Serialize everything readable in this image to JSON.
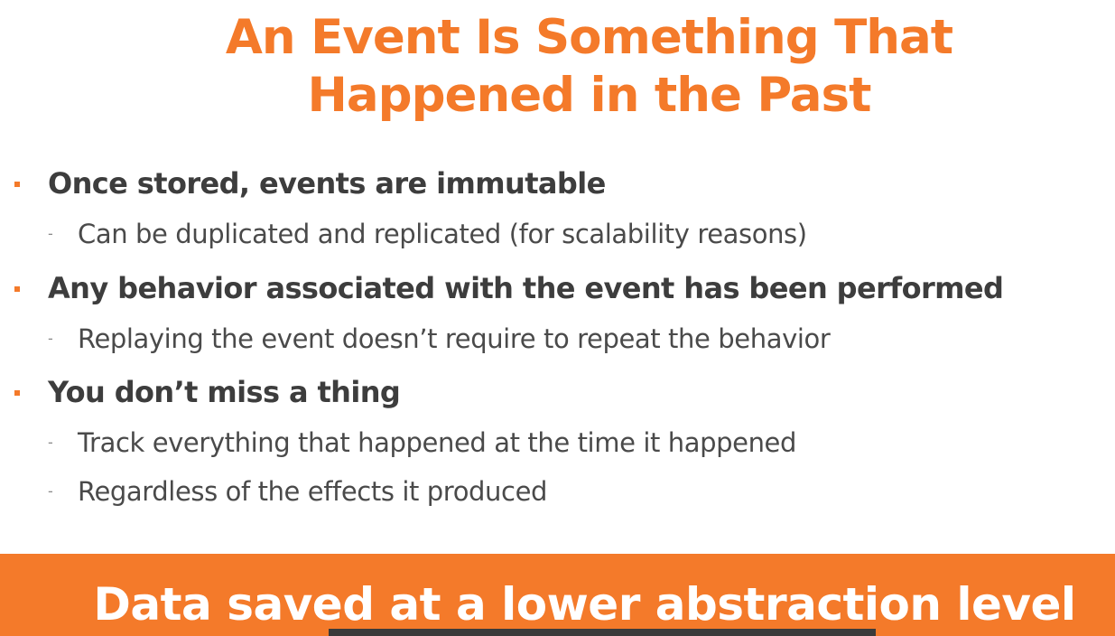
{
  "slide": {
    "title_lines": [
      "An Event Is Something That",
      "Happened in the Past"
    ],
    "bullets": [
      {
        "text": "Once stored, events are immutable",
        "subs": [
          "Can be duplicated and replicated (for scalability reasons)"
        ]
      },
      {
        "text": "Any behavior associated  with the event has been performed",
        "subs": [
          "Replaying the event doesn’t require to repeat the behavior"
        ]
      },
      {
        "text": "You don’t miss a thing",
        "subs": [
          "Track everything that happened at the time it happened",
          "Regardless of the effects it produced"
        ]
      }
    ],
    "banner": "Data saved at a lower abstraction level",
    "colors": {
      "accent": "#f47a2a",
      "bullet_text": "#3d3d3d",
      "sub_text": "#4a4a4a"
    }
  }
}
